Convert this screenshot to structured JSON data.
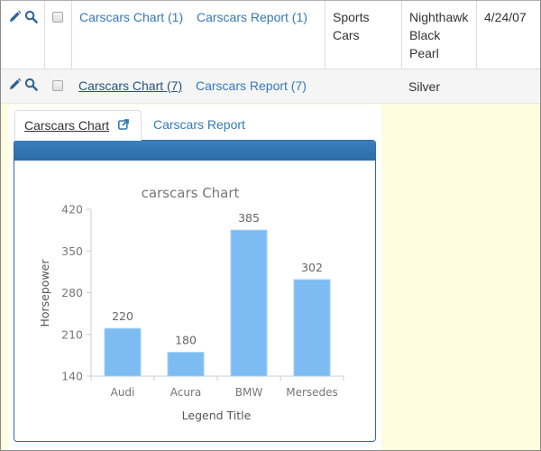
{
  "rows": [
    {
      "chart_link": "Carscars Chart (1)",
      "report_link": "Carscars Report (1)",
      "category_lines": [
        "Sports",
        "Cars"
      ],
      "color_lines": [
        "Nighthawk",
        "Black",
        "Pearl"
      ],
      "date": "4/24/07"
    },
    {
      "chart_link": "Carscars Chart (7)",
      "report_link": "Carscars Report (7)",
      "category_lines": [],
      "color_lines": [
        "Silver"
      ],
      "date": ""
    }
  ],
  "icons": {
    "edit": "pencil-icon",
    "view": "search-icon",
    "external": "external-link-icon"
  },
  "tabs": [
    {
      "label": "Carscars Chart",
      "active": true
    },
    {
      "label": "Carscars Report",
      "active": false
    }
  ],
  "colors": {
    "link": "#337ab7",
    "panel_header": "#2e6da4",
    "bar": "#7cbcf2",
    "expand_bg": "#fffde0",
    "row_alt_bg": "#f5f5f5"
  },
  "chart_data": {
    "type": "bar",
    "title": "carscars Chart",
    "xlabel": "Legend Title",
    "ylabel": "Horsepower",
    "categories": [
      "Audi",
      "Acura",
      "BMW",
      "Mersedes"
    ],
    "values": [
      220,
      180,
      385,
      302
    ],
    "ylim": [
      140,
      420
    ],
    "yticks": [
      140,
      210,
      280,
      350,
      420
    ],
    "grid": false,
    "data_labels": true,
    "legend": "none"
  }
}
